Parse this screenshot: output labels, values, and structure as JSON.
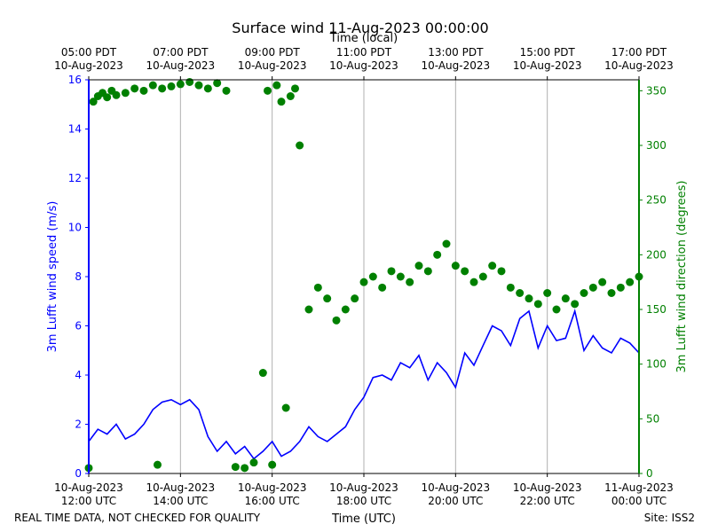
{
  "chart_data": {
    "type": "line+scatter",
    "title": "Surface wind 11-Aug-2023 00:00:00",
    "top_axis_label": "Time (local)",
    "xlabel": "Time (UTC)",
    "ylabel_left": "3m Lufft wind speed (m/s)",
    "ylabel_right": "3m Lufft wind direction (degrees)",
    "footer_left": "REAL TIME DATA, NOT CHECKED FOR QUALITY",
    "footer_right": "Site: ISS2",
    "x_range_hours_utc": [
      12,
      24
    ],
    "ylim_left": [
      0,
      16
    ],
    "ylim_right": [
      0,
      360
    ],
    "grid_vertical": true,
    "colors": {
      "speed": "#0000ff",
      "direction": "#008000",
      "axes": "#000000",
      "grid": "#b0b0b0"
    },
    "bottom_ticks": [
      {
        "hour": 12,
        "line1": "10-Aug-2023",
        "line2": "12:00 UTC"
      },
      {
        "hour": 14,
        "line1": "10-Aug-2023",
        "line2": "14:00 UTC"
      },
      {
        "hour": 16,
        "line1": "10-Aug-2023",
        "line2": "16:00 UTC"
      },
      {
        "hour": 18,
        "line1": "10-Aug-2023",
        "line2": "18:00 UTC"
      },
      {
        "hour": 20,
        "line1": "10-Aug-2023",
        "line2": "20:00 UTC"
      },
      {
        "hour": 22,
        "line1": "10-Aug-2023",
        "line2": "22:00 UTC"
      },
      {
        "hour": 24,
        "line1": "11-Aug-2023",
        "line2": "00:00 UTC"
      }
    ],
    "top_ticks": [
      {
        "hour": 12,
        "line1": "05:00 PDT",
        "line2": "10-Aug-2023"
      },
      {
        "hour": 14,
        "line1": "07:00 PDT",
        "line2": "10-Aug-2023"
      },
      {
        "hour": 16,
        "line1": "09:00 PDT",
        "line2": "10-Aug-2023"
      },
      {
        "hour": 18,
        "line1": "11:00 PDT",
        "line2": "10-Aug-2023"
      },
      {
        "hour": 20,
        "line1": "13:00 PDT",
        "line2": "10-Aug-2023"
      },
      {
        "hour": 22,
        "line1": "15:00 PDT",
        "line2": "10-Aug-2023"
      },
      {
        "hour": 24,
        "line1": "17:00 PDT",
        "line2": "10-Aug-2023"
      }
    ],
    "left_ticks": [
      0,
      2,
      4,
      6,
      8,
      10,
      12,
      14,
      16
    ],
    "right_ticks": [
      0,
      50,
      100,
      150,
      200,
      250,
      300,
      350
    ],
    "series": [
      {
        "name": "3m Lufft wind speed (m/s)",
        "kind": "line",
        "axis": "left",
        "x": [
          12.0,
          12.2,
          12.4,
          12.6,
          12.8,
          13.0,
          13.2,
          13.4,
          13.6,
          13.8,
          14.0,
          14.2,
          14.4,
          14.6,
          14.8,
          15.0,
          15.2,
          15.4,
          15.6,
          15.8,
          16.0,
          16.2,
          16.4,
          16.6,
          16.8,
          17.0,
          17.2,
          17.4,
          17.6,
          17.8,
          18.0,
          18.2,
          18.4,
          18.6,
          18.8,
          19.0,
          19.2,
          19.4,
          19.6,
          19.8,
          20.0,
          20.2,
          20.4,
          20.6,
          20.8,
          21.0,
          21.2,
          21.4,
          21.6,
          21.8,
          22.0,
          22.2,
          22.4,
          22.6,
          22.8,
          23.0,
          23.2,
          23.4,
          23.6,
          23.8,
          24.0
        ],
        "values": [
          1.3,
          1.8,
          1.6,
          2.0,
          1.4,
          1.6,
          2.0,
          2.6,
          2.9,
          3.0,
          2.8,
          3.0,
          2.6,
          1.5,
          0.9,
          1.3,
          0.8,
          1.1,
          0.6,
          0.9,
          1.3,
          0.7,
          0.9,
          1.3,
          1.9,
          1.5,
          1.3,
          1.6,
          1.9,
          2.6,
          3.1,
          3.9,
          4.0,
          3.8,
          4.5,
          4.3,
          4.8,
          3.8,
          4.5,
          4.1,
          3.5,
          4.9,
          4.4,
          5.2,
          6.0,
          5.8,
          5.2,
          6.3,
          6.6,
          5.1,
          6.0,
          5.4,
          5.5,
          6.6,
          5.0,
          5.6,
          5.1,
          4.9,
          5.5,
          5.3,
          4.9
        ]
      },
      {
        "name": "3m Lufft wind direction (degrees)",
        "kind": "scatter",
        "axis": "right",
        "x": [
          12.0,
          12.1,
          12.2,
          12.3,
          12.4,
          12.5,
          12.6,
          12.8,
          13.0,
          13.2,
          13.4,
          13.5,
          13.6,
          13.8,
          14.0,
          14.2,
          14.4,
          14.6,
          14.8,
          15.0,
          15.2,
          15.4,
          15.6,
          15.8,
          15.9,
          16.0,
          16.1,
          16.2,
          16.3,
          16.4,
          16.5,
          16.6,
          16.8,
          17.0,
          17.2,
          17.4,
          17.6,
          17.8,
          18.0,
          18.2,
          18.4,
          18.6,
          18.8,
          19.0,
          19.2,
          19.4,
          19.6,
          19.8,
          20.0,
          20.2,
          20.4,
          20.6,
          20.8,
          21.0,
          21.2,
          21.4,
          21.6,
          21.8,
          22.0,
          22.2,
          22.4,
          22.6,
          22.8,
          23.0,
          23.2,
          23.4,
          23.6,
          23.8,
          24.0
        ],
        "values": [
          5,
          340,
          345,
          348,
          344,
          350,
          346,
          348,
          352,
          350,
          355,
          8,
          352,
          354,
          356,
          358,
          355,
          352,
          357,
          350,
          6,
          5,
          10,
          92,
          350,
          8,
          355,
          340,
          60,
          345,
          352,
          300,
          150,
          170,
          160,
          140,
          150,
          160,
          175,
          180,
          170,
          185,
          180,
          175,
          190,
          185,
          200,
          210,
          190,
          185,
          175,
          180,
          190,
          185,
          170,
          165,
          160,
          155,
          165,
          150,
          160,
          155,
          165,
          170,
          175,
          165,
          170,
          175,
          180
        ]
      }
    ]
  }
}
